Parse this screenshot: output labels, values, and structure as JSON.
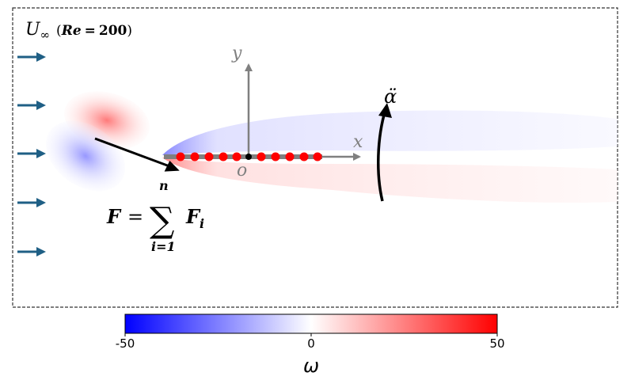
{
  "freestream": {
    "symbol": "U",
    "subscript": "∞",
    "reynolds_label": "Re",
    "reynolds_value": "200"
  },
  "axes": {
    "x_label": "x",
    "y_label": "y",
    "origin_label": "o"
  },
  "angular_acceleration_label": "α̈",
  "force_equation": {
    "lhs": "F",
    "equals": "=",
    "sum_symbol": "∑",
    "upper_limit": "n",
    "lower_limit": "i=1",
    "term": "F",
    "term_subscript": "i"
  },
  "colorbar": {
    "min_label": "-50",
    "mid_label": "0",
    "max_label": "50",
    "title": "ω",
    "colors": {
      "negative": "#0000ff",
      "zero": "#ffffff",
      "positive": "#ff0000"
    }
  },
  "colors": {
    "inflow_arrow": "#1f5f85",
    "axis_gray": "#808080",
    "plate_gray": "#808080",
    "force_point": "#ff0000",
    "frame_border": "#333333"
  },
  "icons": {
    "inflow": "right-arrow-icon",
    "rotation": "curved-arrow-icon",
    "force": "force-vector-arrow-icon"
  }
}
